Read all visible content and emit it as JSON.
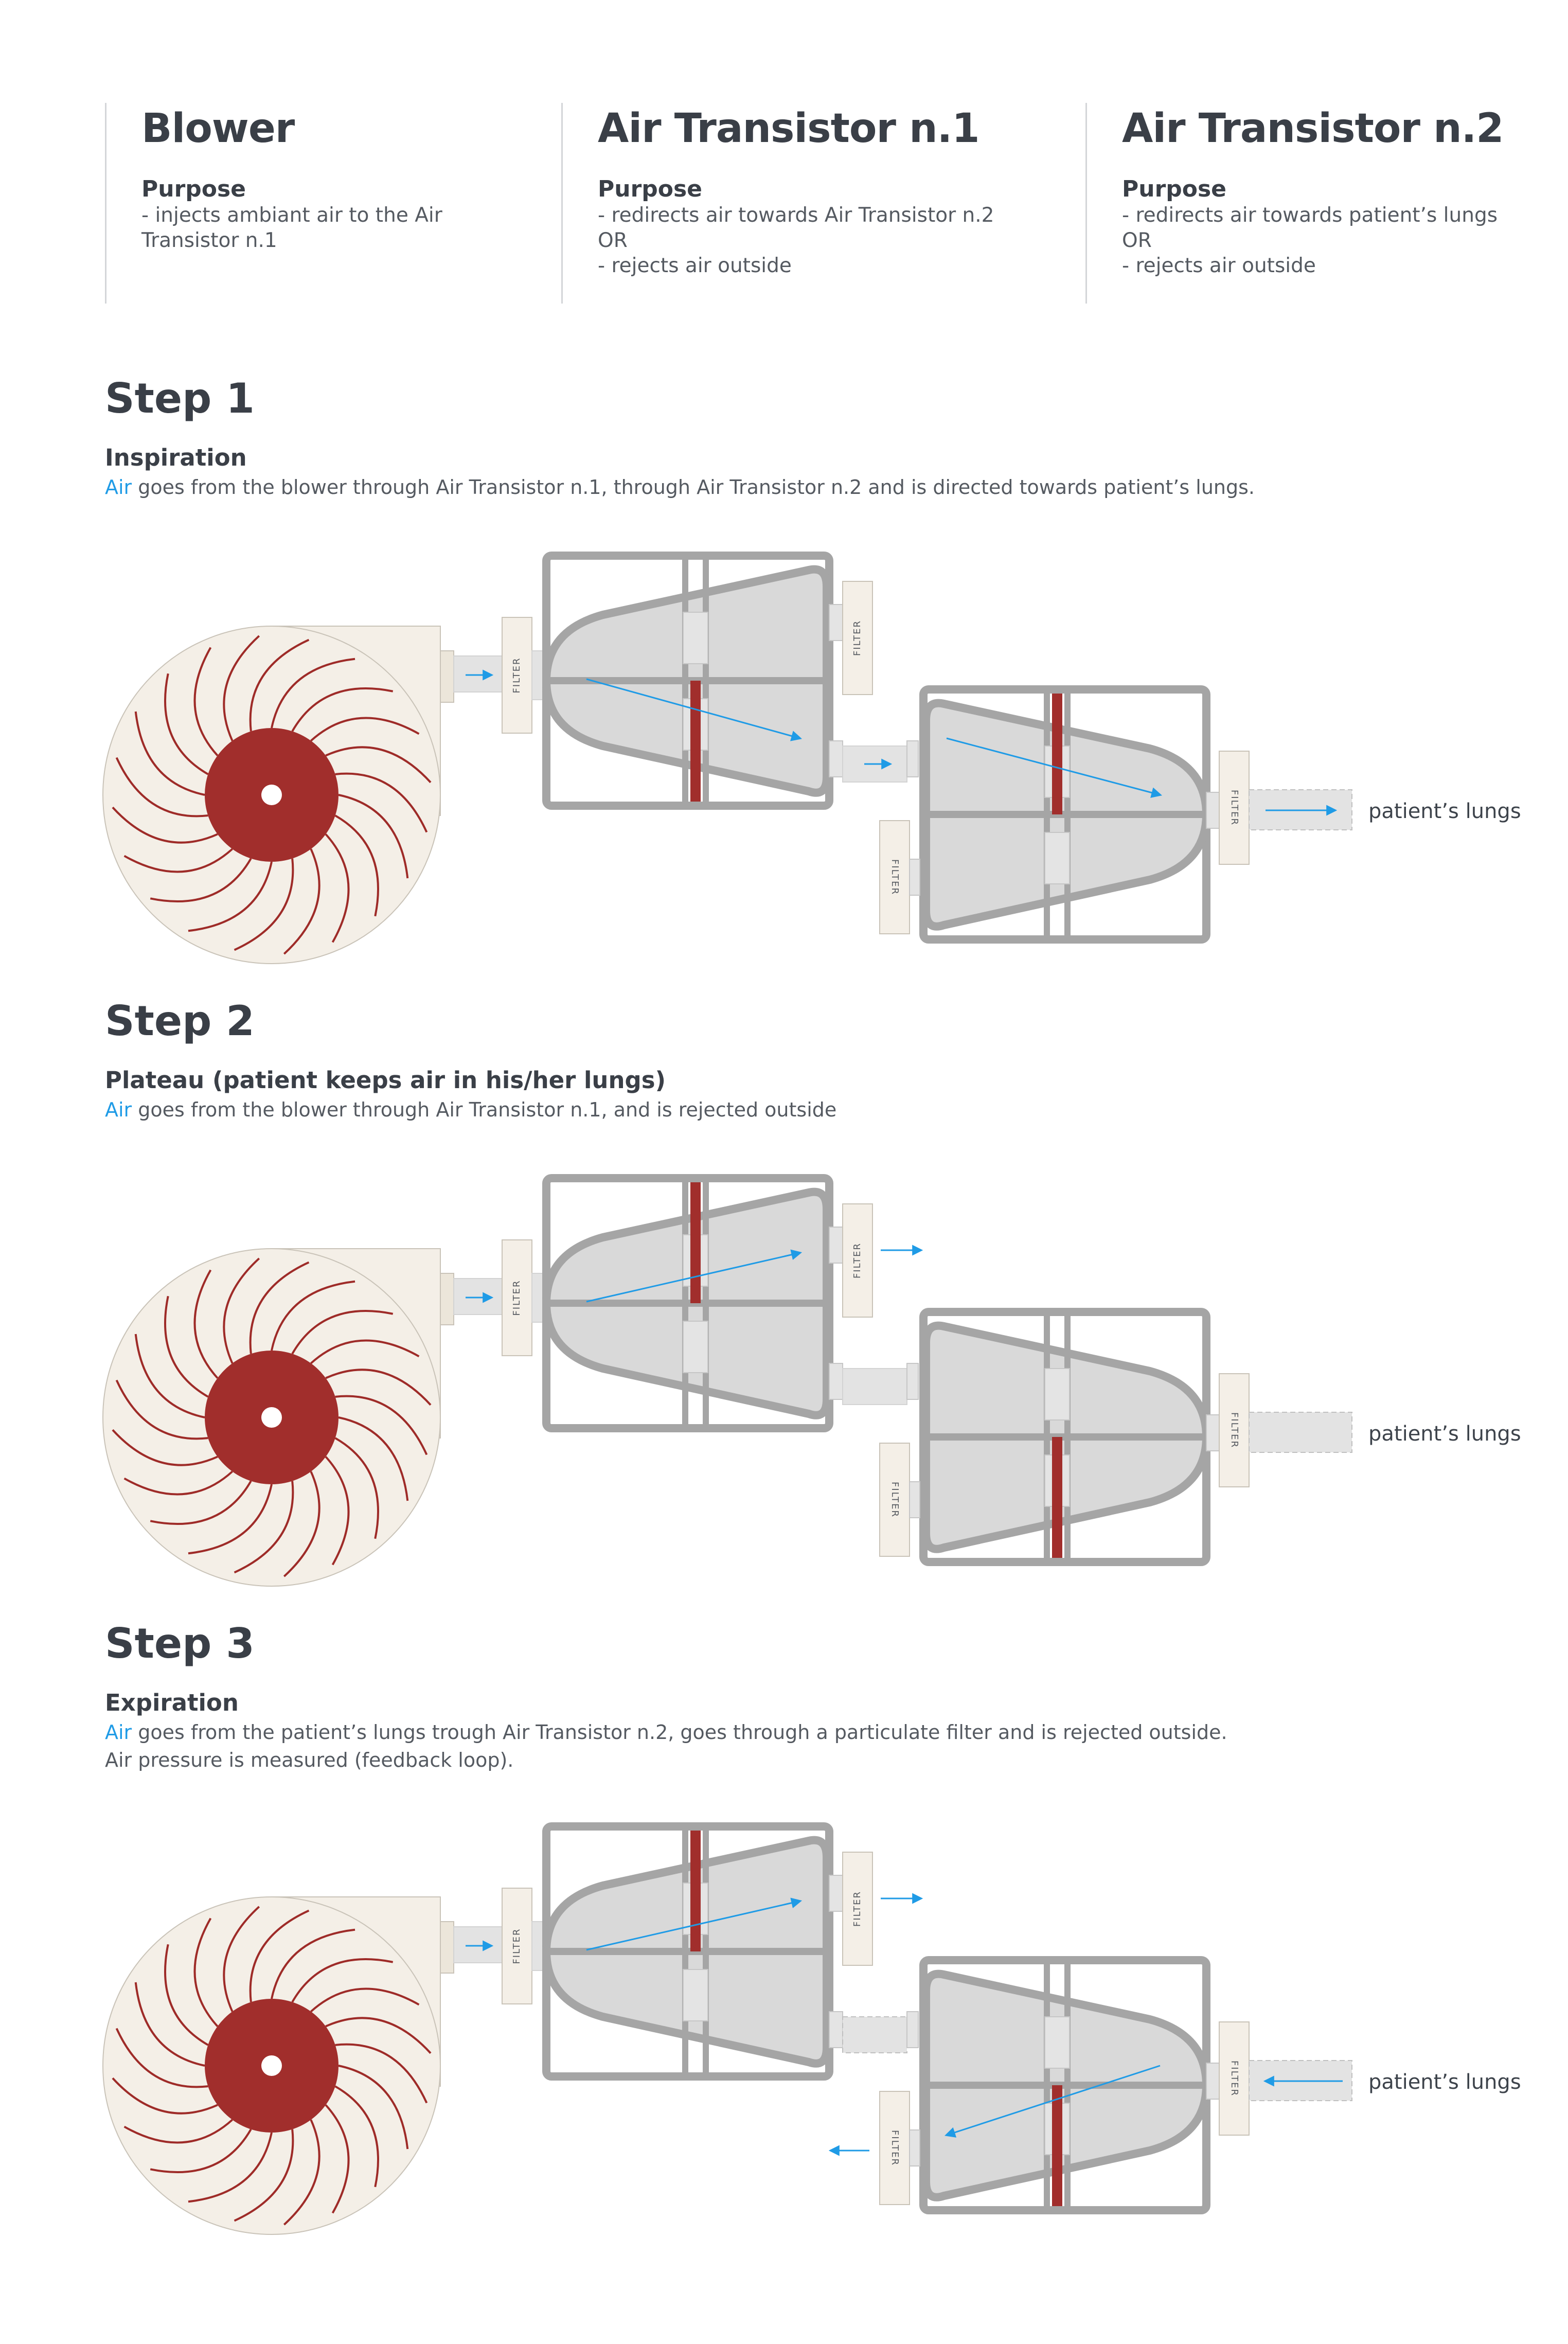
{
  "components": [
    {
      "title": "Blower",
      "purpose_label": "Purpose",
      "description": "- injects ambiant air to the Air\nTransistor n.1"
    },
    {
      "title": "Air Transistor n.1",
      "purpose_label": "Purpose",
      "description": "- redirects air towards Air Transistor n.2\nOR\n- rejects air outside"
    },
    {
      "title": "Air Transistor n.2",
      "purpose_label": "Purpose",
      "description": "- redirects air towards patient’s lungs\nOR\n- rejects air outside"
    }
  ],
  "steps": [
    {
      "title": "Step 1",
      "subtitle": "Inspiration",
      "air_word": "Air",
      "description_rest": " goes from the blower through Air Transistor n.1, through Air Transistor n.2 and is directed towards patient’s lungs.",
      "description_line2": "",
      "lungs_label": "patient’s lungs",
      "valve1": "lower",
      "valve2": "upper"
    },
    {
      "title": "Step 2",
      "subtitle": "Plateau (patient keeps air in his/her lungs)",
      "air_word": "Air",
      "description_rest": " goes from the blower through Air Transistor n.1, and is rejected outside",
      "description_line2": "",
      "lungs_label": "patient’s lungs",
      "valve1": "upper",
      "valve2": "lower"
    },
    {
      "title": "Step 3",
      "subtitle": "Expiration",
      "air_word": "Air",
      "description_rest": " goes from the patient’s lungs trough Air Transistor n.2, goes through a particulate filter and is rejected outside.",
      "description_line2": "Air pressure is measured (feedback loop).",
      "lungs_label": "patient’s lungs",
      "valve1": "upper",
      "valve2": "lower"
    }
  ],
  "filter_label": "FILTER",
  "colors": {
    "heading": "#3a3f47",
    "air_blue": "#1f9be6",
    "valve_red": "#a12e2c",
    "fan_body": "#f4efe7",
    "frame_grey": "#a5a5a5",
    "chamber_grey": "#d9d9d9"
  }
}
